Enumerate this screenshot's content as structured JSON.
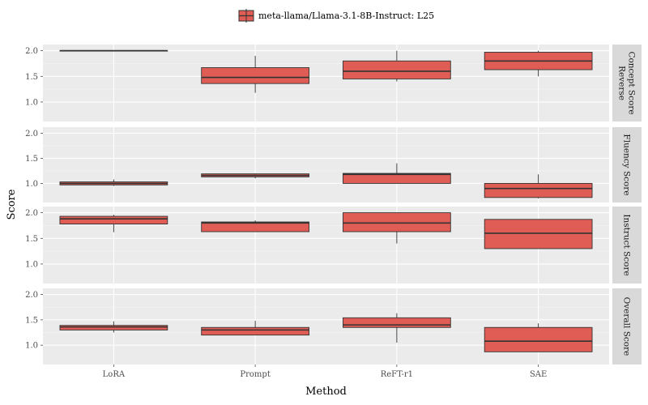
{
  "chart_data": {
    "type": "boxplot",
    "x_label": "Method",
    "y_label": "Score",
    "categories": [
      "LoRA",
      "Prompt",
      "ReFT-r1",
      "SAE"
    ],
    "y_ticks": [
      1.0,
      1.5,
      2.0
    ],
    "y_tick_labels": [
      "1.0",
      "1.5",
      "2.0"
    ],
    "y_range": [
      0.62,
      2.12
    ],
    "grid": true,
    "legend": {
      "position": "top",
      "entries": [
        {
          "name": "meta-llama/Llama-3.1-8B-Instruct: L25",
          "color": "#e05d55"
        }
      ]
    },
    "colors": {
      "fill": "#e05d55",
      "stroke": "#333333",
      "panel_bg": "#ebebeb",
      "strip_bg": "#d9d9d9",
      "grid": "#ffffff"
    },
    "facets": [
      {
        "label_lines": [
          "Concept Score",
          "Reverse"
        ],
        "boxes": [
          {
            "category": "LoRA",
            "min": 2.0,
            "q1": 2.0,
            "median": 2.0,
            "q3": 2.0,
            "max": 2.0
          },
          {
            "category": "Prompt",
            "min": 1.18,
            "q1": 1.36,
            "median": 1.48,
            "q3": 1.67,
            "max": 1.9
          },
          {
            "category": "ReFT-r1",
            "min": 1.4,
            "q1": 1.45,
            "median": 1.6,
            "q3": 1.8,
            "max": 2.0
          },
          {
            "category": "SAE",
            "min": 1.5,
            "q1": 1.63,
            "median": 1.8,
            "q3": 1.97,
            "max": 2.0
          }
        ]
      },
      {
        "label_lines": [
          "Fluency Score"
        ],
        "boxes": [
          {
            "category": "LoRA",
            "min": 0.95,
            "q1": 0.97,
            "median": 1.0,
            "q3": 1.03,
            "max": 1.08
          },
          {
            "category": "Prompt",
            "min": 1.1,
            "q1": 1.13,
            "median": 1.16,
            "q3": 1.19,
            "max": 1.2
          },
          {
            "category": "ReFT-r1",
            "min": 1.0,
            "q1": 1.0,
            "median": 1.18,
            "q3": 1.2,
            "max": 1.4
          },
          {
            "category": "SAE",
            "min": 0.7,
            "q1": 0.72,
            "median": 0.9,
            "q3": 1.0,
            "max": 1.18
          }
        ]
      },
      {
        "label_lines": [
          "Instruct Score"
        ],
        "boxes": [
          {
            "category": "LoRA",
            "min": 1.62,
            "q1": 1.78,
            "median": 1.88,
            "q3": 1.93,
            "max": 1.96
          },
          {
            "category": "Prompt",
            "min": 1.63,
            "q1": 1.63,
            "median": 1.8,
            "q3": 1.82,
            "max": 1.85
          },
          {
            "category": "ReFT-r1",
            "min": 1.4,
            "q1": 1.63,
            "median": 1.8,
            "q3": 2.0,
            "max": 2.0
          },
          {
            "category": "SAE",
            "min": 1.3,
            "q1": 1.3,
            "median": 1.6,
            "q3": 1.87,
            "max": 1.87
          }
        ]
      },
      {
        "label_lines": [
          "Overall Score"
        ],
        "boxes": [
          {
            "category": "LoRA",
            "min": 1.25,
            "q1": 1.3,
            "median": 1.36,
            "q3": 1.39,
            "max": 1.47
          },
          {
            "category": "Prompt",
            "min": 1.2,
            "q1": 1.2,
            "median": 1.3,
            "q3": 1.35,
            "max": 1.48
          },
          {
            "category": "ReFT-r1",
            "min": 1.05,
            "q1": 1.35,
            "median": 1.4,
            "q3": 1.54,
            "max": 1.63
          },
          {
            "category": "SAE",
            "min": 0.87,
            "q1": 0.87,
            "median": 1.08,
            "q3": 1.35,
            "max": 1.43
          }
        ]
      }
    ]
  }
}
